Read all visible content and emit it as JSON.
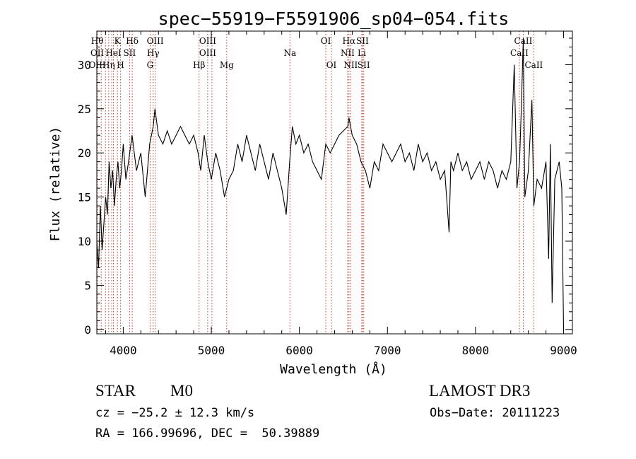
{
  "chart_data": {
    "type": "line",
    "title": "spec−55919−F5591906_sp04−054.fits",
    "xlabel": "Wavelength (Å)",
    "ylabel": "Flux (relative)",
    "xlim": [
      3700,
      9100
    ],
    "ylim": [
      -0.5,
      33.8
    ],
    "xticks": [
      4000,
      5000,
      6000,
      7000,
      8000,
      9000
    ],
    "yticks": [
      0,
      5,
      10,
      15,
      20,
      25,
      30
    ],
    "series": [
      {
        "name": "flux",
        "x": [
          3700,
          3720,
          3740,
          3760,
          3780,
          3800,
          3820,
          3840,
          3860,
          3880,
          3900,
          3920,
          3940,
          3960,
          3980,
          4000,
          4030,
          4060,
          4100,
          4150,
          4200,
          4250,
          4300,
          4340,
          4360,
          4400,
          4450,
          4500,
          4550,
          4600,
          4650,
          4700,
          4750,
          4800,
          4850,
          4880,
          4920,
          4960,
          5000,
          5050,
          5100,
          5150,
          5200,
          5250,
          5300,
          5350,
          5400,
          5450,
          5500,
          5550,
          5600,
          5650,
          5700,
          5750,
          5800,
          5850,
          5890,
          5920,
          5960,
          6000,
          6050,
          6100,
          6150,
          6200,
          6250,
          6300,
          6350,
          6400,
          6450,
          6500,
          6550,
          6563,
          6600,
          6650,
          6700,
          6750,
          6800,
          6850,
          6900,
          6950,
          7000,
          7050,
          7100,
          7150,
          7200,
          7250,
          7300,
          7350,
          7400,
          7450,
          7500,
          7550,
          7600,
          7650,
          7700,
          7720,
          7750,
          7800,
          7850,
          7900,
          7950,
          8000,
          8050,
          8100,
          8150,
          8200,
          8250,
          8300,
          8350,
          8400,
          8440,
          8470,
          8500,
          8520,
          8542,
          8560,
          8600,
          8640,
          8662,
          8700,
          8750,
          8800,
          8830,
          8850,
          8870,
          8900,
          8950,
          8980,
          9000
        ],
        "y": [
          10,
          7,
          14,
          9,
          12,
          15,
          13,
          19,
          16,
          18,
          14,
          17,
          19,
          16,
          18,
          21,
          17,
          19,
          22,
          18,
          20,
          15,
          21,
          23,
          25,
          22,
          21,
          22.5,
          21,
          22,
          23,
          22,
          21,
          22,
          20,
          18,
          22,
          19,
          17,
          20,
          18,
          15,
          17,
          18,
          21,
          19,
          22,
          20,
          18,
          21,
          19,
          17,
          20,
          18,
          16,
          13,
          19,
          23,
          21,
          22,
          20,
          21,
          19,
          18,
          17,
          21,
          20,
          21,
          22,
          22.5,
          23,
          24,
          22,
          21,
          19,
          18,
          16,
          19,
          18,
          21,
          20,
          19,
          20,
          21,
          19,
          20,
          18,
          21,
          19,
          20,
          18,
          19,
          17,
          18,
          11,
          19,
          18,
          20,
          18,
          19,
          17,
          18,
          19,
          17,
          19,
          18,
          16,
          18,
          17,
          19,
          30,
          16,
          19,
          25,
          33,
          15,
          18,
          26,
          14,
          17,
          16,
          19,
          8,
          21,
          3,
          17,
          19,
          16,
          0
        ]
      }
    ],
    "lines": [
      {
        "x": 3705,
        "top": "Hθ",
        "mid": "OII",
        "bot": "OIII"
      },
      {
        "x": 3750,
        "top": "",
        "mid": "",
        "bot": ""
      },
      {
        "x": 3798,
        "top": "",
        "mid": "",
        "bot": ""
      },
      {
        "x": 3835,
        "top": "",
        "mid": "",
        "bot": "Hη"
      },
      {
        "x": 3869,
        "top": "",
        "mid": "",
        "bot": ""
      },
      {
        "x": 3889,
        "top": "",
        "mid": "HeI",
        "bot": ""
      },
      {
        "x": 3934,
        "top": "K",
        "mid": "",
        "bot": ""
      },
      {
        "x": 3970,
        "top": "",
        "mid": "",
        "bot": "H"
      },
      {
        "x": 4072,
        "top": "",
        "mid": "SII",
        "bot": ""
      },
      {
        "x": 4102,
        "top": "Hδ",
        "mid": "",
        "bot": ""
      },
      {
        "x": 4305,
        "top": "",
        "mid": "",
        "bot": "G"
      },
      {
        "x": 4340,
        "top": "",
        "mid": "Hγ",
        "bot": ""
      },
      {
        "x": 4363,
        "top": "OIII",
        "mid": "",
        "bot": ""
      },
      {
        "x": 4861,
        "top": "",
        "mid": "",
        "bot": "Hβ"
      },
      {
        "x": 4959,
        "top": "OIII",
        "mid": "OIII",
        "bot": ""
      },
      {
        "x": 5007,
        "top": "",
        "mid": "",
        "bot": ""
      },
      {
        "x": 5175,
        "top": "",
        "mid": "",
        "bot": "Mg"
      },
      {
        "x": 5893,
        "top": "",
        "mid": "Na",
        "bot": ""
      },
      {
        "x": 6300,
        "top": "OI",
        "mid": "",
        "bot": ""
      },
      {
        "x": 6364,
        "top": "",
        "mid": "",
        "bot": "OI"
      },
      {
        "x": 6548,
        "top": "",
        "mid": "NII",
        "bot": ""
      },
      {
        "x": 6563,
        "top": "Hα",
        "mid": "",
        "bot": ""
      },
      {
        "x": 6583,
        "top": "",
        "mid": "",
        "bot": "NII"
      },
      {
        "x": 6708,
        "top": "",
        "mid": "Li",
        "bot": ""
      },
      {
        "x": 6716,
        "top": "SII",
        "mid": "",
        "bot": ""
      },
      {
        "x": 6731,
        "top": "",
        "mid": "",
        "bot": "SII"
      },
      {
        "x": 8498,
        "top": "",
        "mid": "CaII",
        "bot": ""
      },
      {
        "x": 8542,
        "top": "CaII",
        "mid": "",
        "bot": ""
      },
      {
        "x": 8662,
        "top": "",
        "mid": "",
        "bot": "CaII"
      }
    ]
  },
  "info": {
    "object_class": "STAR",
    "subclass": "M0",
    "survey": "LAMOST DR3",
    "redshift_text": "cz = −25.2 ± 12.3 km/s",
    "obs_date": "Obs−Date: 20111223",
    "coords": "RA = 166.99696, DEC =  50.39889"
  },
  "colors": {
    "line": "#000000",
    "marker": "#c0392b"
  }
}
